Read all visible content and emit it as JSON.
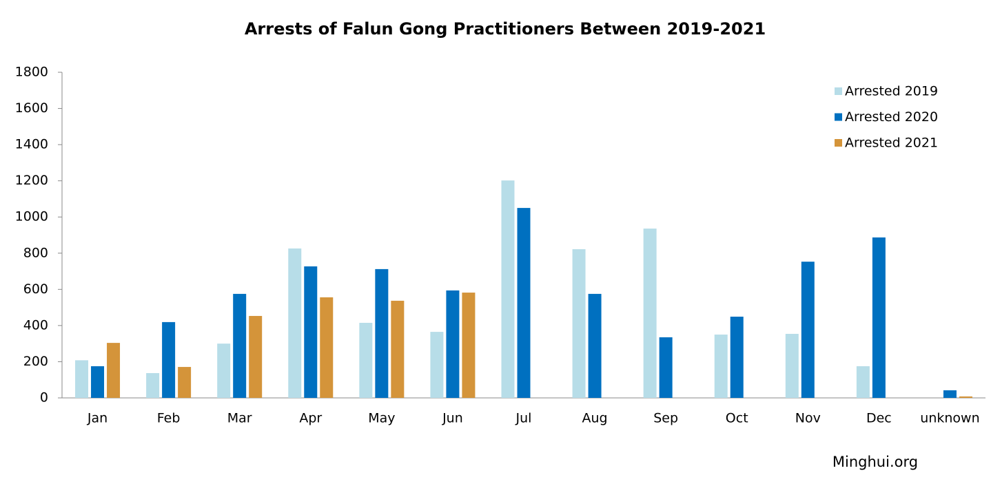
{
  "chart_data": {
    "type": "bar",
    "title": "Arrests of Falun Gong Practitioners Between 2019-2021",
    "categories": [
      "Jan",
      "Feb",
      "Mar",
      "Apr",
      "May",
      "Jun",
      "Jul",
      "Aug",
      "Sep",
      "Oct",
      "Nov",
      "Dec",
      "unknown"
    ],
    "series": [
      {
        "name": "Arrested 2019",
        "color": "#b7dde8",
        "values": [
          208,
          137,
          300,
          826,
          415,
          365,
          1202,
          822,
          936,
          350,
          354,
          175,
          null
        ]
      },
      {
        "name": "Arrested 2020",
        "color": "#0070c0",
        "values": [
          175,
          419,
          575,
          727,
          712,
          594,
          1050,
          575,
          335,
          449,
          753,
          887,
          42
        ]
      },
      {
        "name": "Arrested 2021",
        "color": "#d4943a",
        "values": [
          304,
          171,
          453,
          556,
          537,
          582,
          null,
          null,
          null,
          null,
          null,
          null,
          8
        ]
      }
    ],
    "ylim": [
      0,
      1800
    ],
    "yticks": [
      0,
      200,
      400,
      600,
      800,
      1000,
      1200,
      1400,
      1600,
      1800
    ],
    "grid": false,
    "legend": "top-right",
    "source": "Minghui.org"
  }
}
